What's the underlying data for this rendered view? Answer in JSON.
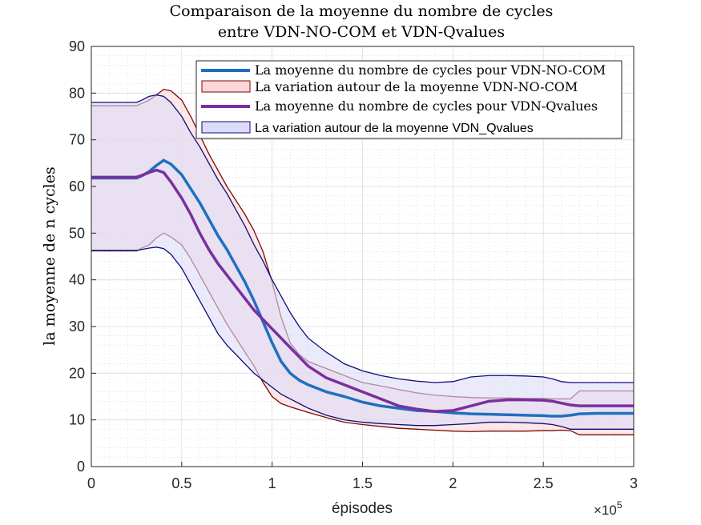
{
  "chart_data": {
    "type": "area",
    "title": [
      "Comparaison de la moyenne du nombre de cycles",
      "entre VDN-NO-COM et VDN-Qvalues"
    ],
    "xlabel": "épisodes",
    "ylabel": "la moyenne de n cycles",
    "x_exponent_label": "×10",
    "x_exponent_power": "5",
    "xlim": [
      0,
      300000
    ],
    "ylim": [
      0,
      90
    ],
    "x_ticks": [
      0,
      50000,
      100000,
      150000,
      200000,
      250000,
      300000
    ],
    "x_tick_labels": [
      "0",
      "0.5",
      "1",
      "1.5",
      "2",
      "2.5",
      "3"
    ],
    "y_ticks": [
      0,
      10,
      20,
      30,
      40,
      50,
      60,
      70,
      80,
      90
    ],
    "y_tick_labels": [
      "0",
      "10",
      "20",
      "30",
      "40",
      "50",
      "60",
      "70",
      "80",
      "90"
    ],
    "grid": true,
    "minor_grid": true,
    "legend_placement": "top-right",
    "x": [
      0,
      25000,
      28000,
      32000,
      36000,
      40000,
      44000,
      50000,
      55000,
      60000,
      65000,
      70000,
      75000,
      80000,
      85000,
      90000,
      95000,
      100000,
      105000,
      110000,
      115000,
      120000,
      130000,
      140000,
      150000,
      160000,
      170000,
      180000,
      190000,
      200000,
      210000,
      220000,
      230000,
      240000,
      250000,
      255000,
      260000,
      265000,
      270000,
      280000,
      290000,
      300000
    ],
    "series": [
      {
        "name": "La moyenne du nombre de cycles pour VDN-NO-COM",
        "role": "mean",
        "color": "#1f6fc0",
        "values": [
          61.8,
          61.8,
          62.3,
          63.2,
          64.5,
          65.6,
          64.8,
          62.5,
          59.5,
          56.5,
          53.0,
          49.5,
          46.5,
          43.0,
          39.5,
          35.5,
          31.0,
          26.5,
          22.5,
          20.0,
          18.5,
          17.5,
          16.0,
          15.0,
          13.8,
          13.0,
          12.5,
          12.0,
          11.8,
          11.5,
          11.3,
          11.2,
          11.1,
          11.0,
          10.9,
          10.8,
          10.8,
          11.0,
          11.3,
          11.4,
          11.4,
          11.4
        ]
      },
      {
        "name": "La variation autour de la moyenne VDN-NO-COM",
        "role": "band",
        "fill": "#fbd7d7",
        "edge": "#7a0a0a",
        "lower": [
          46.2,
          46.2,
          46.8,
          47.5,
          49.0,
          50.0,
          49.2,
          47.5,
          44.5,
          41.0,
          37.5,
          34.0,
          30.5,
          27.5,
          24.5,
          21.5,
          18.0,
          15.0,
          13.5,
          12.8,
          12.2,
          11.6,
          10.5,
          9.5,
          9.0,
          8.6,
          8.2,
          8.0,
          7.8,
          7.6,
          7.5,
          7.6,
          7.6,
          7.6,
          7.7,
          7.7,
          7.8,
          7.7,
          6.8,
          6.8,
          6.8,
          6.8
        ],
        "upper": [
          77.3,
          77.3,
          77.8,
          78.5,
          79.6,
          80.8,
          80.5,
          78.5,
          75.0,
          71.0,
          67.0,
          63.5,
          60.0,
          57.0,
          54.0,
          50.5,
          46.0,
          39.5,
          32.0,
          26.5,
          24.0,
          22.5,
          21.0,
          19.5,
          18.0,
          17.3,
          16.5,
          15.8,
          15.3,
          15.0,
          14.8,
          14.7,
          14.7,
          14.6,
          14.6,
          14.5,
          14.5,
          14.5,
          16.2,
          16.2,
          16.2,
          16.2
        ]
      },
      {
        "name": "La moyenne du nombre de cycles pour VDN-Qvalues",
        "role": "mean",
        "color": "#7a2f9e",
        "values": [
          62.0,
          62.0,
          62.4,
          63.0,
          63.5,
          63.0,
          61.0,
          57.5,
          54.0,
          50.0,
          46.5,
          43.5,
          41.0,
          38.5,
          36.0,
          33.5,
          31.5,
          29.5,
          27.5,
          25.5,
          23.5,
          21.5,
          19.0,
          17.5,
          16.0,
          14.5,
          13.0,
          12.3,
          11.8,
          12.0,
          13.0,
          14.0,
          14.3,
          14.3,
          14.2,
          14.0,
          13.6,
          13.2,
          13.0,
          13.0,
          13.0,
          13.0
        ]
      },
      {
        "name": "La variation autour de la moyenne VDN_Qvalues",
        "role": "band",
        "fill": "#dcdcf8",
        "edge": "#0d0d7a",
        "lower": [
          46.3,
          46.3,
          46.5,
          46.8,
          47.0,
          46.7,
          45.5,
          42.5,
          39.0,
          35.5,
          32.0,
          28.5,
          26.0,
          24.0,
          22.0,
          20.0,
          18.5,
          17.0,
          15.5,
          14.5,
          13.5,
          12.5,
          11.0,
          10.0,
          9.5,
          9.2,
          9.0,
          8.8,
          8.8,
          9.0,
          9.2,
          9.5,
          9.5,
          9.4,
          9.2,
          9.0,
          8.6,
          8.0,
          8.0,
          8.0,
          8.0,
          8.0
        ],
        "upper": [
          78.0,
          78.0,
          78.5,
          79.3,
          79.6,
          79.3,
          78.0,
          75.0,
          71.5,
          68.5,
          65.0,
          61.5,
          58.5,
          55.0,
          51.5,
          47.5,
          44.0,
          40.0,
          36.5,
          33.0,
          30.0,
          27.5,
          24.5,
          22.0,
          20.5,
          19.5,
          18.8,
          18.3,
          18.0,
          18.2,
          19.2,
          19.5,
          19.5,
          19.4,
          19.2,
          18.8,
          18.2,
          18.0,
          18.0,
          18.0,
          18.0,
          18.0
        ]
      }
    ]
  }
}
